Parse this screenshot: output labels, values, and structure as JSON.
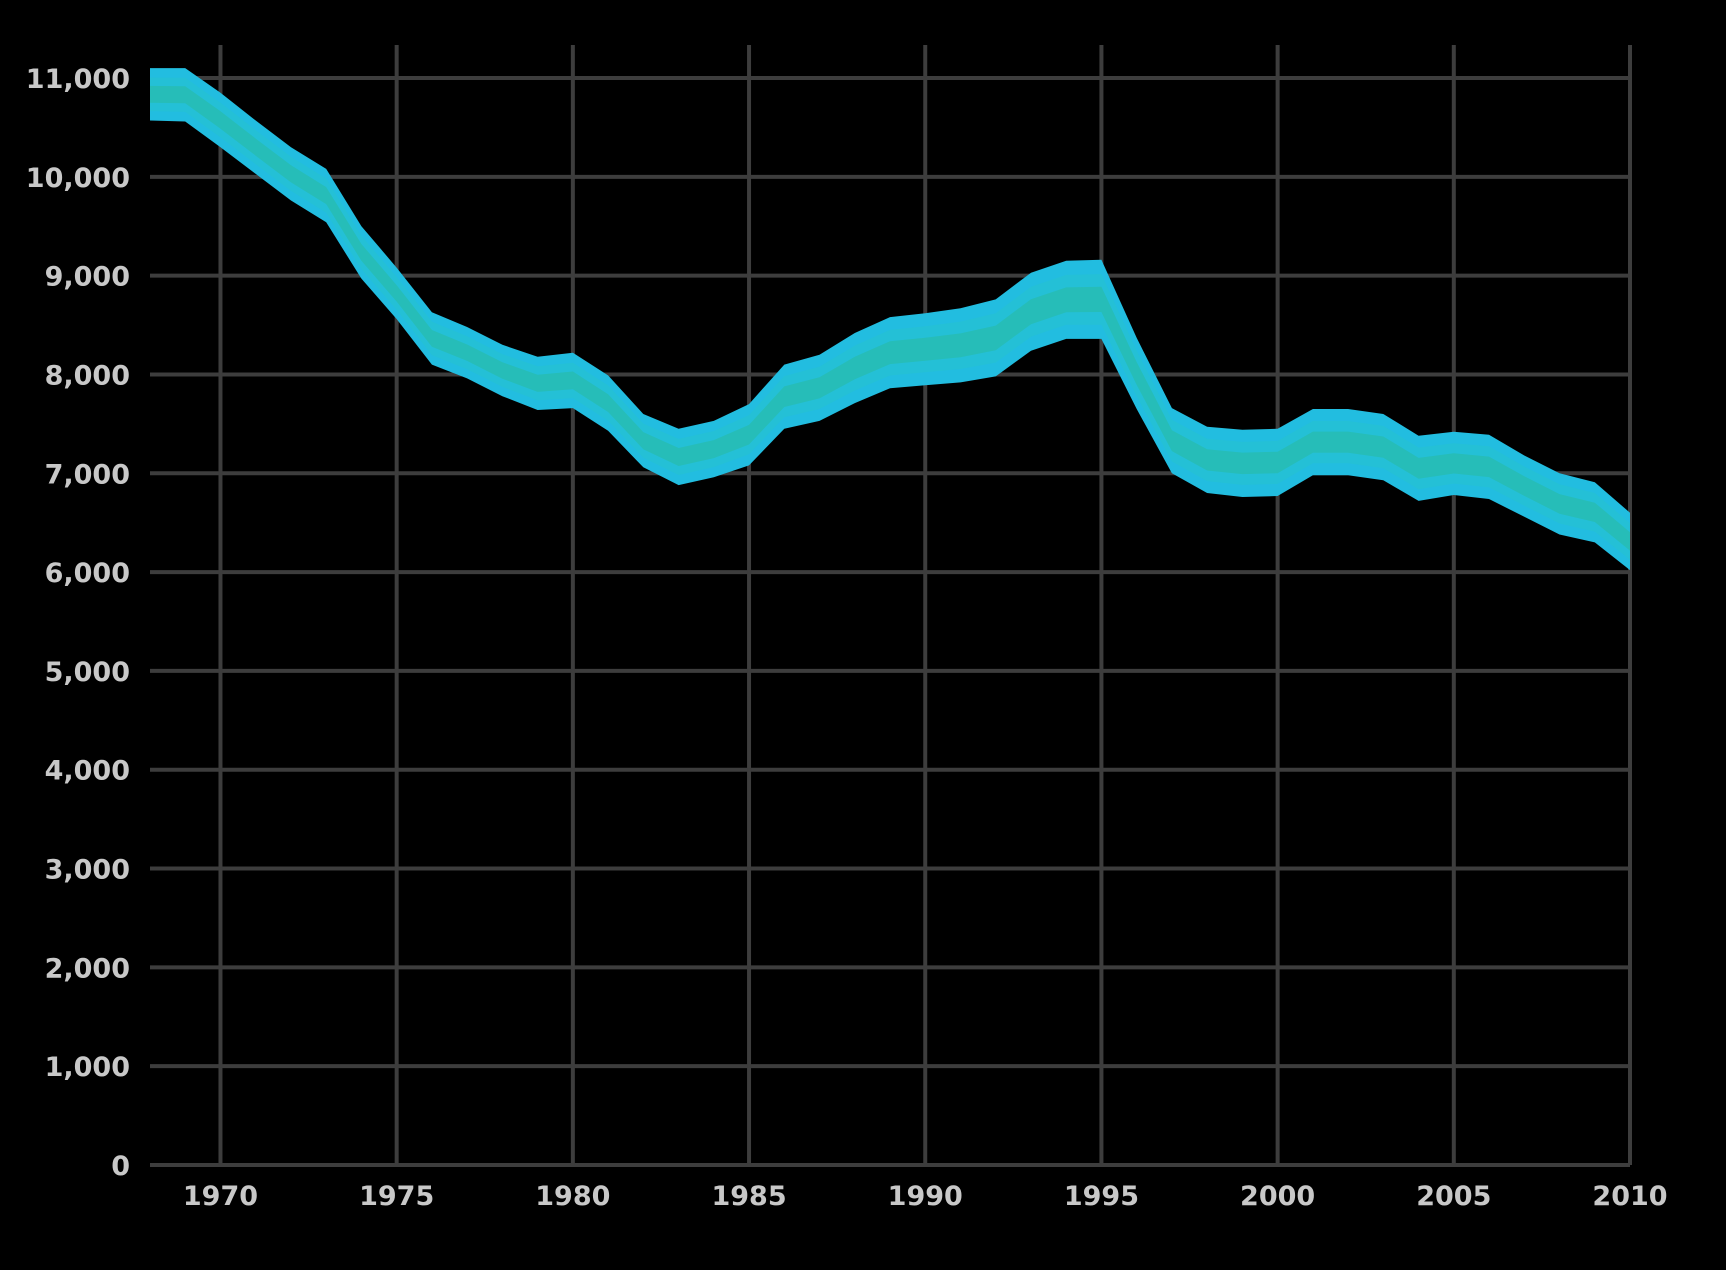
{
  "chart_data": {
    "type": "area",
    "title": "",
    "xlabel": "",
    "ylabel": "",
    "xlim": [
      1968,
      2010
    ],
    "ylim": [
      0,
      11000
    ],
    "x_ticks": [
      1970,
      1975,
      1980,
      1985,
      1990,
      1995,
      2000,
      2005,
      2010
    ],
    "x_tick_labels": [
      "1970",
      "1975",
      "1980",
      "1985",
      "1990",
      "1995",
      "2000",
      "2005",
      "2010"
    ],
    "y_ticks": [
      0,
      1000,
      2000,
      3000,
      4000,
      5000,
      6000,
      7000,
      8000,
      9000,
      10000,
      11000
    ],
    "y_tick_labels": [
      "0",
      "1,000",
      "2,000",
      "3,000",
      "4,000",
      "5,000",
      "6,000",
      "7,000",
      "8,000",
      "9,000",
      "10,000",
      "11,000"
    ],
    "grid": true,
    "legend": "none",
    "x": [
      1968,
      1969,
      1970,
      1971,
      1972,
      1973,
      1974,
      1975,
      1976,
      1977,
      1978,
      1979,
      1980,
      1981,
      1982,
      1983,
      1984,
      1985,
      1986,
      1987,
      1988,
      1989,
      1990,
      1991,
      1992,
      1993,
      1994,
      1995,
      1996,
      1997,
      1998,
      1999,
      2000,
      2001,
      2002,
      2003,
      2004,
      2005,
      2006,
      2007,
      2008,
      2009,
      2010
    ],
    "series": [
      {
        "role": "upper",
        "values": [
          11100,
          11100,
          10850,
          10570,
          10300,
          10080,
          9500,
          9080,
          8630,
          8480,
          8300,
          8180,
          8220,
          7990,
          7600,
          7450,
          7530,
          7700,
          8100,
          8200,
          8420,
          8580,
          8620,
          8670,
          8760,
          9030,
          9150,
          9160,
          8370,
          7660,
          7470,
          7440,
          7450,
          7650,
          7650,
          7600,
          7380,
          7420,
          7390,
          7180,
          7000,
          6910,
          6600
        ]
      },
      {
        "role": "lower",
        "values": [
          10570,
          10560,
          10300,
          10030,
          9760,
          9540,
          8970,
          8560,
          8100,
          7960,
          7780,
          7640,
          7660,
          7430,
          7060,
          6880,
          6960,
          7080,
          7450,
          7530,
          7710,
          7860,
          7890,
          7920,
          7980,
          8240,
          8360,
          8360,
          7650,
          7000,
          6800,
          6760,
          6770,
          6980,
          6980,
          6930,
          6720,
          6780,
          6740,
          6560,
          6380,
          6300,
          6020
        ]
      }
    ],
    "colors": {
      "background": "#000000",
      "grid": "#3d3d3d",
      "tick_text": "#c8c8c8",
      "band_outer": "#22bde0",
      "band_mid": "#24c0d6",
      "band_inner": "#26bdb8"
    }
  }
}
